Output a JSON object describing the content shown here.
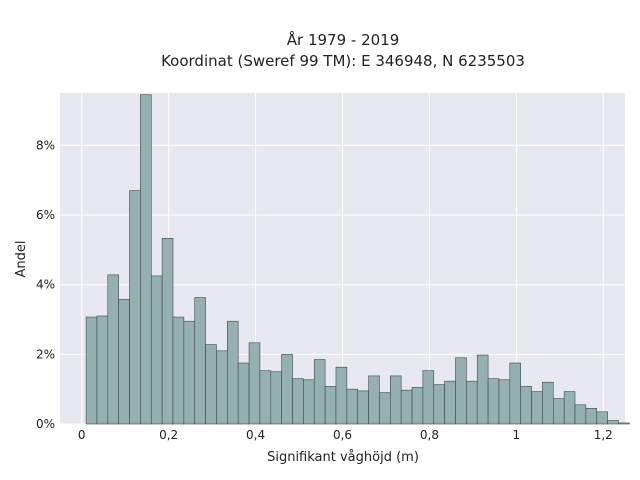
{
  "chart_data": {
    "type": "bar",
    "title_line1": "År 1979 - 2019",
    "title_line2": "Koordinat (Sweref 99 TM): E 346948, N 6235503",
    "xlabel": "Signifikant våghöjd (m)",
    "ylabel": "Andel",
    "xlim": [
      -0.05,
      1.25
    ],
    "ylim": [
      0,
      0.095
    ],
    "x_ticks": [
      {
        "value": 0,
        "label": "0"
      },
      {
        "value": 0.2,
        "label": "0,2"
      },
      {
        "value": 0.4,
        "label": "0,4"
      },
      {
        "value": 0.6,
        "label": "0,6"
      },
      {
        "value": 0.8,
        "label": "0,8"
      },
      {
        "value": 1.0,
        "label": "1"
      },
      {
        "value": 1.2,
        "label": "1,2"
      }
    ],
    "y_ticks": [
      {
        "value": 0,
        "label": "0%"
      },
      {
        "value": 0.02,
        "label": "2%"
      },
      {
        "value": 0.04,
        "label": "4%"
      },
      {
        "value": 0.06,
        "label": "6%"
      },
      {
        "value": 0.08,
        "label": "8%"
      }
    ],
    "bin_start": 0.01,
    "bin_width": 0.025,
    "values": [
      0.0307,
      0.031,
      0.0428,
      0.0358,
      0.067,
      0.0945,
      0.0425,
      0.0533,
      0.0307,
      0.0295,
      0.0363,
      0.0228,
      0.021,
      0.0295,
      0.0175,
      0.0233,
      0.0153,
      0.015,
      0.02,
      0.013,
      0.0127,
      0.0185,
      0.0108,
      0.0163,
      0.01,
      0.0095,
      0.0138,
      0.009,
      0.0138,
      0.0097,
      0.0105,
      0.0153,
      0.0113,
      0.0123,
      0.019,
      0.0123,
      0.0198,
      0.013,
      0.0127,
      0.0175,
      0.0108,
      0.0093,
      0.012,
      0.0073,
      0.0093,
      0.0055,
      0.0045,
      0.0035,
      0.001,
      0.0003
    ],
    "colors": {
      "bar_fill": "#96b0b0",
      "bar_stroke": "#3a4a4a",
      "plot_bg": "#e8e8f0",
      "grid": "#ffffff"
    },
    "grid": true
  }
}
